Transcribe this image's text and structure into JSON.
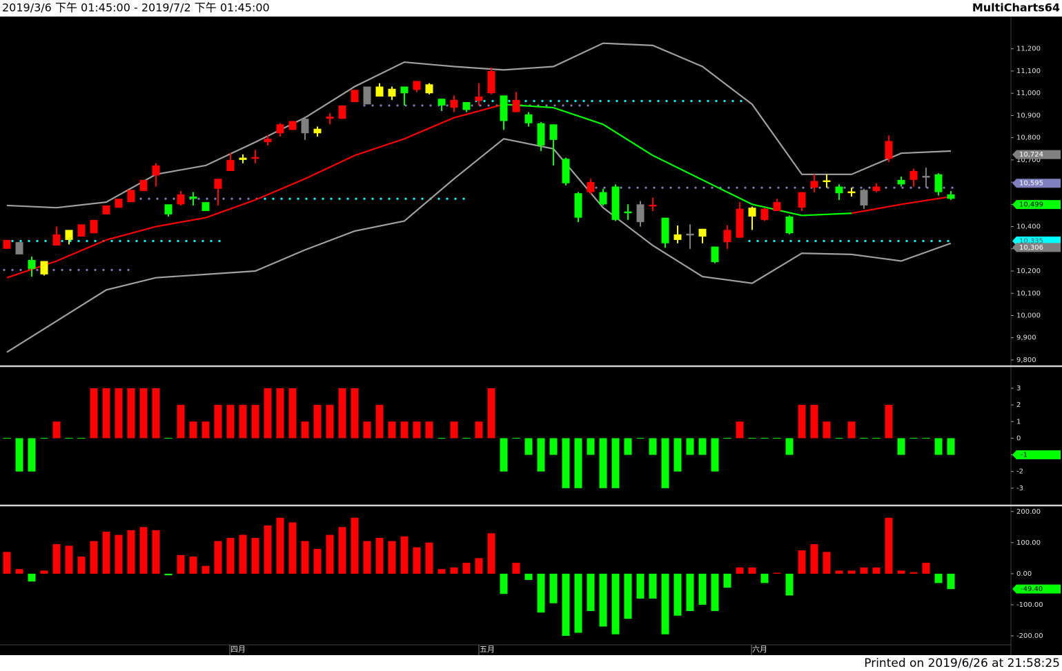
{
  "title": "2019/3/6 下午 01:45:00 - 2019/7/2 下午 01:45:00",
  "brand": "MultiCharts64",
  "footer": "Printed on 2019/6/26 at 21:58:25",
  "months": [
    "四月",
    "五月",
    "六月"
  ],
  "chart_data": [
    {
      "type": "candlestick",
      "open": [
        10300,
        10330,
        10250,
        10245,
        10315,
        10340,
        10355,
        10370,
        10455,
        10485,
        10510,
        10560,
        10630,
        10500,
        10500,
        10535,
        10510,
        10570,
        10650,
        10700,
        10705,
        10780,
        10820,
        10835,
        10885,
        10820,
        10885,
        10885,
        10960,
        11030,
        10985,
        10985,
        11030,
        11015,
        11000,
        10975,
        10935,
        10960,
        10965,
        11000,
        10990,
        10915,
        10905,
        10865,
        10860,
        10705,
        10550,
        10555,
        10555,
        10580,
        10465,
        10500,
        10490,
        10440,
        10340,
        10365,
        10355,
        10310,
        10330,
        10350,
        10445,
        10430,
        10470,
        10445,
        10485,
        10575,
        10600,
        10580,
        10550,
        10565,
        10560,
        10705,
        10610,
        10610,
        10625,
        10635,
        10545
      ],
      "high": [
        10340,
        10330,
        10265,
        10245,
        10400,
        10385,
        10410,
        10430,
        10495,
        10525,
        10565,
        10610,
        10685,
        10500,
        10560,
        10555,
        10510,
        10615,
        10730,
        10725,
        10745,
        10810,
        10865,
        10875,
        10895,
        10850,
        10910,
        10945,
        11015,
        11030,
        11045,
        11030,
        11030,
        11055,
        11045,
        10975,
        10990,
        10960,
        11045,
        11115,
        10990,
        11005,
        10915,
        10870,
        10860,
        10710,
        10555,
        10615,
        10570,
        10590,
        10500,
        10515,
        10530,
        10440,
        10405,
        10410,
        10390,
        10310,
        10405,
        10510,
        10490,
        10485,
        10525,
        10450,
        10555,
        10635,
        10635,
        10590,
        10575,
        10570,
        10595,
        10810,
        10625,
        10660,
        10665,
        10640,
        10560
      ],
      "low": [
        10300,
        10275,
        10175,
        10180,
        10315,
        10320,
        10355,
        10370,
        10455,
        10485,
        10510,
        10560,
        10580,
        10445,
        10495,
        10495,
        10470,
        10495,
        10650,
        10685,
        10685,
        10765,
        10805,
        10835,
        10790,
        10805,
        10860,
        10885,
        10960,
        10950,
        10985,
        10970,
        10945,
        11005,
        10995,
        10920,
        10915,
        10915,
        10945,
        10995,
        10835,
        10915,
        10850,
        10740,
        10675,
        10585,
        10420,
        10545,
        10495,
        10425,
        10430,
        10400,
        10470,
        10305,
        10325,
        10300,
        10325,
        10235,
        10300,
        10350,
        10385,
        10425,
        10470,
        10365,
        10470,
        10555,
        10575,
        10520,
        10535,
        10480,
        10555,
        10690,
        10580,
        10580,
        10575,
        10540,
        10520
      ],
      "close": [
        10340,
        10275,
        10210,
        10185,
        10365,
        10385,
        10410,
        10430,
        10495,
        10525,
        10565,
        10610,
        10675,
        10455,
        10545,
        10525,
        10470,
        10615,
        10700,
        10710,
        10710,
        10795,
        10860,
        10875,
        10820,
        10840,
        10895,
        10945,
        11015,
        10950,
        11030,
        11020,
        11000,
        11055,
        11040,
        10945,
        10970,
        10925,
        10985,
        11100,
        10875,
        10970,
        10865,
        10765,
        10790,
        10595,
        10440,
        10600,
        10500,
        10430,
        10460,
        10420,
        10495,
        10325,
        10365,
        10360,
        10390,
        10240,
        10385,
        10480,
        10485,
        10480,
        10510,
        10370,
        10555,
        10605,
        10605,
        10550,
        10555,
        10495,
        10580,
        10785,
        10590,
        10650,
        10620,
        10555,
        10525
      ],
      "colors": [
        "#ff0000",
        "#808080",
        "#00ff00",
        "#ffff00",
        "#ff0000",
        "#ffff00",
        "#ff0000",
        "#ff0000",
        "#ff0000",
        "#ff0000",
        "#ff0000",
        "#ff0000",
        "#ff0000",
        "#00ff00",
        "#ff0000",
        "#00ff00",
        "#00ff00",
        "#ff0000",
        "#ff0000",
        "#ffff00",
        "#ff0000",
        "#ff0000",
        "#ff0000",
        "#ff0000",
        "#808080",
        "#ffff00",
        "#ff0000",
        "#ff0000",
        "#ff0000",
        "#808080",
        "#ffff00",
        "#ffff00",
        "#00ff00",
        "#ff0000",
        "#ffff00",
        "#00ff00",
        "#ff0000",
        "#00ff00",
        "#ff0000",
        "#ff0000",
        "#00ff00",
        "#ff0000",
        "#00ff00",
        "#00ff00",
        "#00ff00",
        "#00ff00",
        "#00ff00",
        "#ff0000",
        "#00ff00",
        "#00ff00",
        "#00ff00",
        "#808080",
        "#ff0000",
        "#00ff00",
        "#ffff00",
        "#808080",
        "#ffff00",
        "#00ff00",
        "#ff0000",
        "#ff0000",
        "#ffff00",
        "#ff0000",
        "#ff0000",
        "#00ff00",
        "#ff0000",
        "#ff0000",
        "#ffff00",
        "#00ff00",
        "#ffff00",
        "#808080",
        "#ff0000",
        "#ff0000",
        "#00ff00",
        "#ff0000",
        "#808080",
        "#00ff00",
        "#00ff00"
      ],
      "overlays": [
        {
          "color": "#a0a0a0",
          "x": [
            0,
            4,
            8,
            12,
            16,
            20,
            24,
            28,
            32,
            36,
            40,
            44,
            48,
            52,
            56,
            60,
            64,
            68,
            72,
            76
          ],
          "values": [
            10495,
            10485,
            10510,
            10635,
            10675,
            10780,
            10890,
            11030,
            11140,
            11120,
            11105,
            11120,
            11225,
            11215,
            11120,
            10950,
            10635,
            10635,
            10730,
            10740
          ]
        },
        {
          "color": "#a0a0a0",
          "x": [
            0,
            4,
            8,
            12,
            16,
            20,
            24,
            28,
            32,
            36,
            40,
            44,
            48,
            52,
            56,
            60,
            64,
            68,
            72,
            76
          ],
          "values": [
            9835,
            9975,
            10115,
            10170,
            10185,
            10200,
            10295,
            10380,
            10425,
            10615,
            10795,
            10750,
            10485,
            10315,
            10175,
            10145,
            10280,
            10275,
            10245,
            10325
          ]
        },
        {
          "x": [
            0,
            4,
            8,
            12,
            16,
            20,
            24,
            28,
            32,
            36,
            40,
            44,
            48,
            52,
            56,
            60,
            64,
            68,
            72,
            76
          ],
          "values": [
            10170,
            10245,
            10340,
            10400,
            10440,
            10520,
            10615,
            10720,
            10795,
            10890,
            10950,
            10935,
            10860,
            10720,
            10610,
            10500,
            10450,
            10460,
            10500,
            10535
          ],
          "segment_colors": [
            "#ff0000",
            "#ff0000",
            "#ff0000",
            "#ff0000",
            "#ff0000",
            "#ff0000",
            "#ff0000",
            "#ff0000",
            "#ff0000",
            "#ff0000",
            "#00ff00",
            "#00ff00",
            "#00ff00",
            "#00ff00",
            "#00ff00",
            "#00ff00",
            "#00ff00",
            "#ff0000",
            "#ff0000"
          ]
        }
      ],
      "levels": [
        {
          "value": 10205,
          "from": 0,
          "to": 10,
          "color": "#8080c0"
        },
        {
          "value": 10335,
          "from": 0,
          "to": 17,
          "color": "#00ffff"
        },
        {
          "value": 10525,
          "from": 11,
          "to": 21,
          "color": "#8080c0"
        },
        {
          "value": 10525,
          "from": 21,
          "to": 37,
          "color": "#00ffff"
        },
        {
          "value": 10945,
          "from": 29,
          "to": 47,
          "color": "#8080c0"
        },
        {
          "value": 10965,
          "from": 38,
          "to": 59,
          "color": "#00ffff"
        },
        {
          "value": 10575,
          "from": 47,
          "to": 76,
          "color": "#8080c0"
        },
        {
          "value": 10335,
          "from": 60,
          "to": 76,
          "color": "#00ffff"
        }
      ],
      "markers": [
        {
          "value": 10724,
          "label": "10,724",
          "color": "#808080",
          "text_color": "#ffffff"
        },
        {
          "value": 10595,
          "label": "10,595",
          "color": "#8080c0",
          "text_color": "#ffffff"
        },
        {
          "value": 10499,
          "label": "10,499",
          "color": "#00ff00",
          "text_color": "#000000"
        },
        {
          "value": 10335,
          "label": "10,335",
          "color": "#00ffff",
          "text_color": "#606060"
        },
        {
          "value": 10306,
          "label": "10,306",
          "color": "#808080",
          "text_color": "#ffffff"
        }
      ],
      "ylim": [
        9775,
        11345
      ],
      "yticks": [
        {
          "value": 11200,
          "label": "11,200"
        },
        {
          "value": 11100,
          "label": "11,100"
        },
        {
          "value": 11000,
          "label": "11,000"
        },
        {
          "value": 10900,
          "label": "10,900"
        },
        {
          "value": 10800,
          "label": "10,800"
        },
        {
          "value": 10700,
          "label": "10,700"
        },
        {
          "value": 10600,
          "label": "10,600"
        },
        {
          "value": 10500,
          "label": "10,500"
        },
        {
          "value": 10400,
          "label": "10,400"
        },
        {
          "value": 10300,
          "label": "10,300"
        },
        {
          "value": 10200,
          "label": "10,200"
        },
        {
          "value": 10100,
          "label": "10,100"
        },
        {
          "value": 10000,
          "label": "10,000"
        },
        {
          "value": 9900,
          "label": "9,900"
        },
        {
          "value": 9800,
          "label": "9,800"
        }
      ]
    },
    {
      "type": "histogram-bar",
      "values": [
        0,
        -2,
        -2,
        0,
        1,
        0,
        0,
        3,
        3,
        3,
        3,
        3,
        3,
        0,
        2,
        1,
        1,
        2,
        2,
        2,
        2,
        3,
        3,
        3,
        1,
        2,
        2,
        3,
        3,
        1,
        2,
        1,
        1,
        1,
        1,
        0,
        1,
        0,
        1,
        3,
        -2,
        0,
        -1,
        -2,
        -1,
        -3,
        -3,
        -1,
        -3,
        -3,
        -1,
        0,
        -1,
        -3,
        -2,
        -1,
        -1,
        -2,
        0,
        1,
        0,
        0,
        0,
        -1,
        2,
        2,
        1,
        0,
        1,
        0,
        0,
        2,
        -1,
        0,
        0,
        -1,
        -1
      ],
      "up_color": "#ff0000",
      "down_color": "#00ff00",
      "current": {
        "value": -1,
        "color": "#00ff00"
      },
      "ylim": [
        -4,
        4.2
      ],
      "yticks": [
        3,
        2,
        1,
        0,
        -1,
        -2,
        -3
      ]
    },
    {
      "type": "histogram-bar",
      "values": [
        70,
        15,
        -25,
        10,
        95,
        90,
        55,
        105,
        135,
        125,
        140,
        150,
        140,
        -5,
        60,
        55,
        25,
        105,
        115,
        125,
        115,
        155,
        180,
        165,
        105,
        80,
        125,
        150,
        180,
        105,
        115,
        105,
        120,
        85,
        100,
        15,
        20,
        35,
        50,
        130,
        -65,
        35,
        -20,
        -125,
        -95,
        -200,
        -190,
        -120,
        -170,
        -195,
        -145,
        -80,
        -80,
        -195,
        -135,
        -120,
        -100,
        -120,
        -45,
        20,
        20,
        -30,
        3,
        -70,
        75,
        95,
        70,
        10,
        10,
        20,
        20,
        180,
        10,
        5,
        35,
        -30,
        -49.4
      ],
      "up_color": "#ff0000",
      "down_color": "#00ff00",
      "current": {
        "value": -49.4,
        "label": "-49.40",
        "color": "#00ff00"
      },
      "ylim": [
        -262,
        215
      ],
      "yticks": [
        {
          "value": 200,
          "label": "200.00"
        },
        {
          "value": 100,
          "label": "100.00"
        },
        {
          "value": 0,
          "label": "0.00"
        },
        {
          "value": -100,
          "label": "-100.00"
        },
        {
          "value": -200,
          "label": "-200.00"
        }
      ]
    }
  ]
}
